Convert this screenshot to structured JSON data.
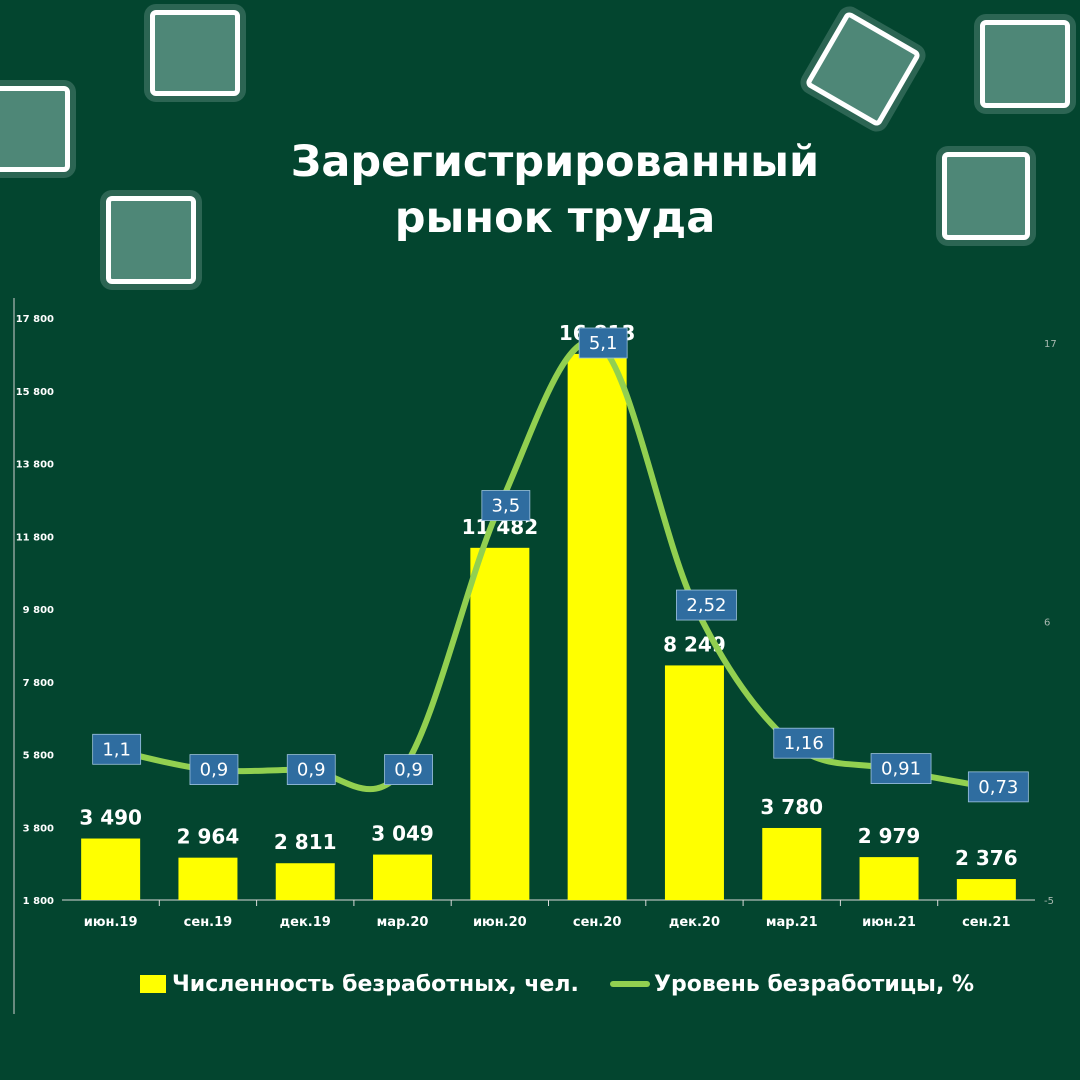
{
  "colors": {
    "background": "#03452f",
    "bar": "#ffff00",
    "line": "#92d050",
    "label_box": "#2f6da0",
    "text": "#ffffff"
  },
  "chart_data": {
    "type": "bar",
    "title": [
      "Зарегистрированный",
      "рынок труда"
    ],
    "categories": [
      "июн.19",
      "сен.19",
      "дек.19",
      "мар.20",
      "июн.20",
      "сен.20",
      "дек.20",
      "мар.21",
      "июн.21",
      "сен.21"
    ],
    "series": [
      {
        "name": "Численность безработных, чел.",
        "type": "bar",
        "axis": "left",
        "values": [
          3490,
          2964,
          2811,
          3049,
          11482,
          16813,
          8249,
          3780,
          2979,
          2376
        ],
        "labels": [
          "3 490",
          "2 964",
          "2 811",
          "3 049",
          "11 482",
          "16 813",
          "8 249",
          "3 780",
          "2 979",
          "2 376"
        ]
      },
      {
        "name": "Уровень безработицы, %",
        "type": "line",
        "axis": "right",
        "values": [
          1.1,
          0.9,
          0.9,
          0.9,
          3.5,
          5.1,
          2.52,
          1.16,
          0.91,
          0.73
        ],
        "labels": [
          "1,1",
          "0,9",
          "0,9",
          "0,9",
          "3,5",
          "5,1",
          "2,52",
          "1,16",
          "0,91",
          "0,73"
        ]
      }
    ],
    "y_left": {
      "ylim": [
        1800,
        17800
      ],
      "ticks": [
        1800,
        3800,
        5800,
        7800,
        9800,
        11800,
        13800,
        15800,
        17800
      ],
      "tick_labels": [
        "1 800",
        "3 800",
        "5 800",
        "7 800",
        "9 800",
        "11 800",
        "13 800",
        "15 800",
        "17 800"
      ]
    },
    "y_right": {
      "ylim": [
        -5,
        17
      ],
      "ticks": [
        -5,
        6,
        17
      ],
      "tick_labels": [
        "-5",
        "6",
        "17"
      ]
    },
    "grid": false,
    "legend": "bottom"
  }
}
